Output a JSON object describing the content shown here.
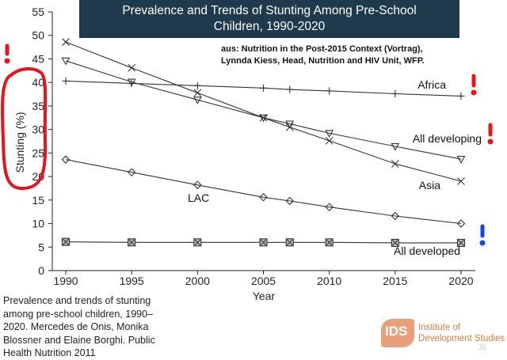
{
  "slide": {
    "title_line1": "Prevalence and Trends of Stunting Among Pre-School",
    "title_line2": "Children, 1990-2020",
    "source_line1": "aus: Nutrition in the Post-2015 Context (Vortrag),",
    "source_line2": "Lynnda Kiess, Head, Nutrition and HIV Unit, WFP.",
    "caption_lines": [
      "Prevalence and trends of stunting",
      "among pre-school children, 1990–",
      "2020. Mercedes de Onis, Monika",
      "Blossner and Elaine Borghi. Public",
      "Health Nutrition 2011"
    ],
    "page_number": "35",
    "logo_text": "IDS",
    "logo_name_line1": "Institute of",
    "logo_name_line2": "Development Studies"
  },
  "chart_data": {
    "type": "line",
    "title": "",
    "xlabel": "Year",
    "ylabel": "Stunting (%)",
    "xlim": [
      1988.5,
      2021
    ],
    "ylim": [
      0,
      55
    ],
    "xticks": [
      1990,
      1995,
      2000,
      2005,
      2010,
      2015,
      2020
    ],
    "yticks": [
      0,
      5,
      10,
      15,
      20,
      25,
      30,
      35,
      40,
      45,
      50,
      55
    ],
    "grid": false,
    "series": [
      {
        "name": "Africa",
        "marker": "plus",
        "x": [
          1990,
          1995,
          2000,
          2005,
          2007,
          2010,
          2015,
          2020
        ],
        "y": [
          40.3,
          39.8,
          39.3,
          38.8,
          38.5,
          38.2,
          37.6,
          37.1
        ]
      },
      {
        "name": "All developing",
        "marker": "triangle",
        "x": [
          1990,
          1995,
          2000,
          2005,
          2007,
          2010,
          2015,
          2020
        ],
        "y": [
          44.6,
          40.1,
          36.3,
          32.5,
          31.2,
          29.2,
          26.4,
          23.7
        ]
      },
      {
        "name": "Asia",
        "marker": "x",
        "x": [
          1990,
          1995,
          2000,
          2005,
          2007,
          2010,
          2015,
          2020
        ],
        "y": [
          48.6,
          43.1,
          37.8,
          32.5,
          30.5,
          27.6,
          22.7,
          19.0
        ]
      },
      {
        "name": "LAC",
        "marker": "diamond",
        "x": [
          1990,
          1995,
          2000,
          2005,
          2007,
          2010,
          2015,
          2020
        ],
        "y": [
          23.6,
          20.9,
          18.2,
          15.6,
          14.8,
          13.5,
          11.6,
          10.0
        ]
      },
      {
        "name": "All developed",
        "marker": "square",
        "x": [
          1990,
          1995,
          2000,
          2005,
          2007,
          2010,
          2015,
          2020
        ],
        "y": [
          6.1,
          6.0,
          6.0,
          6.0,
          6.0,
          6.0,
          5.9,
          5.9
        ]
      }
    ],
    "annotations": {
      "exclamation_color_red": "#e8141b",
      "exclamation_color_blue": "#1646e0",
      "circle_color": "#e8141b"
    }
  }
}
